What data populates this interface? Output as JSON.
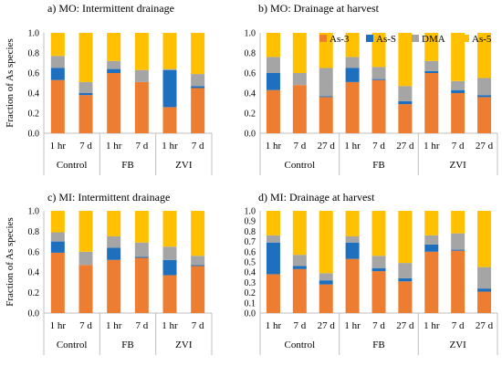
{
  "colors": {
    "As-3": "#ed7d31",
    "As-S": "#1f6fbf",
    "DMA": "#a5a5a5",
    "As-5": "#ffc000"
  },
  "legend": [
    "As-3",
    "As-S",
    "DMA",
    "As-5"
  ],
  "chart_data": [
    {
      "type": "bar",
      "stacked": true,
      "title": "a) MO: Intermittent drainage",
      "ylabel": "Fraction of As species",
      "ylim": [
        0,
        1
      ],
      "yticks": [
        "0.0",
        "0.2",
        "0.4",
        "0.6",
        "0.8",
        "1.0"
      ],
      "categories": [
        "1 hr",
        "7 d",
        "1 hr",
        "7 d",
        "1 hr",
        "7 d"
      ],
      "groups": [
        {
          "label": "Control",
          "size": 2
        },
        {
          "label": "FB",
          "size": 2
        },
        {
          "label": "ZVI",
          "size": 2
        }
      ],
      "series": [
        {
          "name": "As-3",
          "values": [
            0.53,
            0.38,
            0.6,
            0.51,
            0.26,
            0.45
          ]
        },
        {
          "name": "As-S",
          "values": [
            0.12,
            0.02,
            0.04,
            0.0,
            0.37,
            0.02
          ]
        },
        {
          "name": "DMA",
          "values": [
            0.12,
            0.11,
            0.08,
            0.12,
            0.01,
            0.12
          ]
        },
        {
          "name": "As-5",
          "values": [
            0.23,
            0.49,
            0.28,
            0.37,
            0.36,
            0.41
          ]
        }
      ]
    },
    {
      "type": "bar",
      "stacked": true,
      "title": "b) MO: Drainage at harvest",
      "ylabel": "",
      "ylim": [
        0,
        1
      ],
      "yticks": [
        "0.0",
        "0.2",
        "0.4",
        "0.6",
        "0.8",
        "1.0"
      ],
      "categories": [
        "1 hr",
        "7 d",
        "27 d",
        "1 hr",
        "7 d",
        "27 d",
        "1 hr",
        "7 d",
        "27 d"
      ],
      "groups": [
        {
          "label": "Control",
          "size": 3
        },
        {
          "label": "FB",
          "size": 3
        },
        {
          "label": "ZVI",
          "size": 3
        }
      ],
      "series": [
        {
          "name": "As-3",
          "values": [
            0.43,
            0.48,
            0.36,
            0.51,
            0.53,
            0.29,
            0.6,
            0.4,
            0.36
          ]
        },
        {
          "name": "As-S",
          "values": [
            0.17,
            0.0,
            0.01,
            0.14,
            0.01,
            0.03,
            0.02,
            0.03,
            0.02
          ]
        },
        {
          "name": "DMA",
          "values": [
            0.16,
            0.12,
            0.28,
            0.11,
            0.12,
            0.15,
            0.1,
            0.09,
            0.17
          ]
        },
        {
          "name": "As-5",
          "values": [
            0.24,
            0.4,
            0.35,
            0.24,
            0.34,
            0.53,
            0.28,
            0.48,
            0.45
          ]
        }
      ]
    },
    {
      "type": "bar",
      "stacked": true,
      "title": "c) MI: Intermittent drainage",
      "ylabel": "Fraction of As species",
      "ylim": [
        0,
        1
      ],
      "yticks": [
        "0.0",
        "0.2",
        "0.4",
        "0.6",
        "0.8",
        "1.0"
      ],
      "categories": [
        "1 hr",
        "7 d",
        "1 hr",
        "7 d",
        "1 hr",
        "7 d"
      ],
      "groups": [
        {
          "label": "Control",
          "size": 2
        },
        {
          "label": "FB",
          "size": 2
        },
        {
          "label": "ZVI",
          "size": 2
        }
      ],
      "series": [
        {
          "name": "As-3",
          "values": [
            0.59,
            0.47,
            0.52,
            0.54,
            0.37,
            0.46
          ]
        },
        {
          "name": "As-S",
          "values": [
            0.11,
            0.0,
            0.12,
            0.01,
            0.15,
            0.01
          ]
        },
        {
          "name": "DMA",
          "values": [
            0.09,
            0.13,
            0.11,
            0.14,
            0.13,
            0.09
          ]
        },
        {
          "name": "As-5",
          "values": [
            0.21,
            0.4,
            0.25,
            0.31,
            0.35,
            0.44
          ]
        }
      ]
    },
    {
      "type": "bar",
      "stacked": true,
      "title": "d) MI: Drainage at harvest",
      "ylabel": "",
      "ylim": [
        0,
        1
      ],
      "yticks": [
        "0.0",
        "0.1",
        "0.2",
        "0.3",
        "0.4",
        "0.5",
        "0.6",
        "0.7",
        "0.8",
        "0.9",
        "1.0"
      ],
      "categories": [
        "1 hr",
        "7 d",
        "27 d",
        "1 hr",
        "7 d",
        "27 d",
        "1 hr",
        "7 d",
        "27 d"
      ],
      "groups": [
        {
          "label": "Control",
          "size": 3
        },
        {
          "label": "FB",
          "size": 3
        },
        {
          "label": "ZVI",
          "size": 3
        }
      ],
      "series": [
        {
          "name": "As-3",
          "values": [
            0.38,
            0.43,
            0.28,
            0.53,
            0.41,
            0.31,
            0.6,
            0.61,
            0.21
          ]
        },
        {
          "name": "As-S",
          "values": [
            0.31,
            0.03,
            0.04,
            0.16,
            0.03,
            0.03,
            0.07,
            0.01,
            0.03
          ]
        },
        {
          "name": "DMA",
          "values": [
            0.07,
            0.11,
            0.07,
            0.06,
            0.12,
            0.15,
            0.09,
            0.16,
            0.21
          ]
        },
        {
          "name": "As-5",
          "values": [
            0.24,
            0.43,
            0.61,
            0.25,
            0.44,
            0.51,
            0.24,
            0.22,
            0.55
          ]
        }
      ]
    }
  ]
}
